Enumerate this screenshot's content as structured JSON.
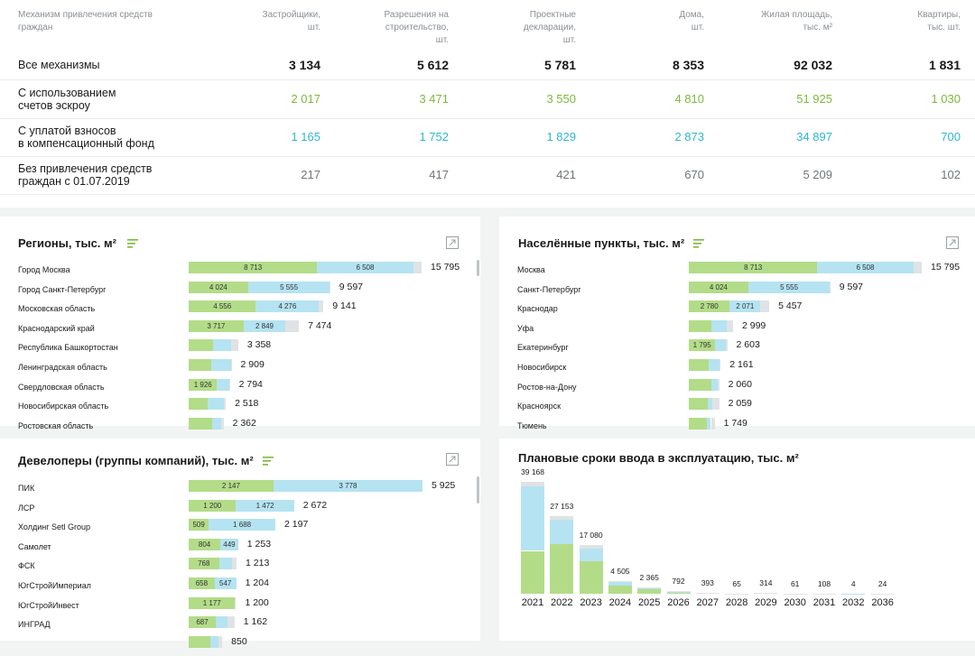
{
  "summary": {
    "headers": [
      "Механизм привлечения средств\nграждан",
      "Застройщики,\nшт.",
      "Разрешения на\nстроительство,\nшт.",
      "Проектные\nдекларации,\nшт.",
      "Дома,\nшт.",
      "Жилая площадь,\nтыс. м²",
      "Квартиры,\nтыс. шт."
    ],
    "rows": [
      {
        "label": "Все механизмы",
        "values": [
          "3 134",
          "5 612",
          "5 781",
          "8 353",
          "92 032",
          "1 831"
        ],
        "color": "#1a1a1a"
      },
      {
        "label": "С использованием\nсчетов эскроу",
        "values": [
          "2 017",
          "3 471",
          "3 550",
          "4 810",
          "51 925",
          "1 030"
        ],
        "color": "#7cb93a"
      },
      {
        "label": "С уплатой взносов\nв компенсационный фонд",
        "values": [
          "1 165",
          "1 752",
          "1 829",
          "2 873",
          "34 897",
          "700"
        ],
        "color": "#2eb6d3"
      },
      {
        "label": "Без привлечения средств\nграждан с 01.07.2019",
        "values": [
          "217",
          "417",
          "421",
          "670",
          "5 209",
          "102"
        ],
        "color": "#6f757a"
      }
    ]
  },
  "regions": {
    "title": "Регионы, тыс. м²",
    "rows": [
      {
        "label": "Город Москва",
        "green": 8713,
        "blue": 6508,
        "grey": 574,
        "gl": "8 713",
        "bl": "6 508",
        "total": "15 795"
      },
      {
        "label": "Город Санкт-Петербург",
        "green": 4024,
        "blue": 5555,
        "grey": 18,
        "gl": "4 024",
        "bl": "5 555",
        "total": "9 597"
      },
      {
        "label": "Московская область",
        "green": 4556,
        "blue": 4276,
        "grey": 309,
        "gl": "4 556",
        "bl": "4 276",
        "total": "9 141"
      },
      {
        "label": "Краснодарский край",
        "green": 3717,
        "blue": 2849,
        "grey": 908,
        "gl": "3 717",
        "bl": "2 849",
        "total": "7 474"
      },
      {
        "label": "Республика Башкортостан",
        "green": 1650,
        "blue": 1200,
        "grey": 508,
        "gl": "",
        "bl": "",
        "total": "3 358"
      },
      {
        "label": "Ленинградская область",
        "green": 1500,
        "blue": 1350,
        "grey": 59,
        "gl": "",
        "bl": "",
        "total": "2 909"
      },
      {
        "label": "Свердловская область",
        "green": 1926,
        "blue": 800,
        "grey": 68,
        "gl": "1 926",
        "bl": "",
        "total": "2 794"
      },
      {
        "label": "Новосибирская область",
        "green": 1300,
        "blue": 1100,
        "grey": 118,
        "gl": "",
        "bl": "",
        "total": "2 518"
      },
      {
        "label": "Ростовская область",
        "green": 1600,
        "blue": 600,
        "grey": 162,
        "gl": "",
        "bl": "",
        "total": "2 362"
      }
    ]
  },
  "cities": {
    "title": "Населённые пункты, тыс. м²",
    "rows": [
      {
        "label": "Москва",
        "green": 8713,
        "blue": 6508,
        "grey": 574,
        "gl": "8 713",
        "bl": "6 508",
        "total": "15 795"
      },
      {
        "label": "Санкт-Петербург",
        "green": 4024,
        "blue": 5555,
        "grey": 18,
        "gl": "4 024",
        "bl": "5 555",
        "total": "9 597"
      },
      {
        "label": "Краснодар",
        "green": 2780,
        "blue": 2071,
        "grey": 606,
        "gl": "2 780",
        "bl": "2 071",
        "total": "5 457"
      },
      {
        "label": "Уфа",
        "green": 1500,
        "blue": 1050,
        "grey": 449,
        "gl": "",
        "bl": "",
        "total": "2 999"
      },
      {
        "label": "Екатеринбург",
        "green": 1795,
        "blue": 700,
        "grey": 108,
        "gl": "1 795",
        "bl": "",
        "total": "2 603"
      },
      {
        "label": "Новосибирск",
        "green": 1350,
        "blue": 750,
        "grey": 61,
        "gl": "",
        "bl": "",
        "total": "2 161"
      },
      {
        "label": "Ростов-на-Дону",
        "green": 1500,
        "blue": 450,
        "grey": 110,
        "gl": "",
        "bl": "",
        "total": "2 060"
      },
      {
        "label": "Красноярск",
        "green": 1300,
        "blue": 300,
        "grey": 459,
        "gl": "",
        "bl": "",
        "total": "2 059"
      },
      {
        "label": "Тюмень",
        "green": 1200,
        "blue": 300,
        "grey": 249,
        "gl": "",
        "bl": "",
        "total": "1 749"
      }
    ]
  },
  "developers": {
    "title": "Девелоперы (группы компаний), тыс. м²",
    "rows": [
      {
        "label": "ПИК",
        "green": 2147,
        "blue": 3778,
        "grey": 0,
        "gl": "2 147",
        "bl": "3 778",
        "total": "5 925"
      },
      {
        "label": "ЛСР",
        "green": 1200,
        "blue": 1472,
        "grey": 0,
        "gl": "1 200",
        "bl": "1 472",
        "total": "2 672"
      },
      {
        "label": "Холдинг Setl Group",
        "green": 509,
        "blue": 1688,
        "grey": 0,
        "gl": "509",
        "bl": "1 688",
        "total": "2 197"
      },
      {
        "label": "Самолет",
        "green": 804,
        "blue": 449,
        "grey": 0,
        "gl": "804",
        "bl": "449",
        "total": "1 253"
      },
      {
        "label": "ФСК",
        "green": 768,
        "blue": 330,
        "grey": 115,
        "gl": "768",
        "bl": "",
        "total": "1 213"
      },
      {
        "label": "ЮгСтройИмпериал",
        "green": 658,
        "blue": 547,
        "grey": 0,
        "gl": "658",
        "bl": "547",
        "total": "1 204"
      },
      {
        "label": "ЮгСтройИнвест",
        "green": 1177,
        "blue": 0,
        "grey": 23,
        "gl": "1 177",
        "bl": "",
        "total": "1 200"
      },
      {
        "label": "ИНГРАД",
        "green": 687,
        "blue": 300,
        "grey": 175,
        "gl": "687",
        "bl": "",
        "total": "1 162"
      },
      {
        "label": "",
        "green": 550,
        "blue": 200,
        "grey": 100,
        "gl": "",
        "bl": "",
        "total": "850"
      }
    ]
  },
  "schedule": {
    "title": "Плановые сроки ввода в эксплуатацию, тыс. м²",
    "bars": [
      {
        "year": "2021",
        "green": 15000,
        "blue": 22500,
        "grey": 1668,
        "label": "39 168"
      },
      {
        "year": "2022",
        "green": 17500,
        "blue": 8500,
        "grey": 1153,
        "label": "27 153"
      },
      {
        "year": "2023",
        "green": 11500,
        "blue": 4200,
        "grey": 1380,
        "label": "17 080"
      },
      {
        "year": "2024",
        "green": 2900,
        "blue": 1300,
        "grey": 305,
        "label": "4 505"
      },
      {
        "year": "2025",
        "green": 1500,
        "blue": 700,
        "grey": 165,
        "label": "2 365"
      },
      {
        "year": "2026",
        "green": 500,
        "blue": 200,
        "grey": 92,
        "label": "792"
      },
      {
        "year": "2027",
        "green": 250,
        "blue": 100,
        "grey": 43,
        "label": "393"
      },
      {
        "year": "2028",
        "green": 40,
        "blue": 15,
        "grey": 10,
        "label": "65"
      },
      {
        "year": "2029",
        "green": 250,
        "blue": 50,
        "grey": 14,
        "label": "314"
      },
      {
        "year": "2030",
        "green": 40,
        "blue": 15,
        "grey": 6,
        "label": "61"
      },
      {
        "year": "2031",
        "green": 70,
        "blue": 30,
        "grey": 8,
        "label": "108"
      },
      {
        "year": "2032",
        "green": 3,
        "blue": 1,
        "grey": 0,
        "label": "4"
      },
      {
        "year": "2036",
        "green": 18,
        "blue": 4,
        "grey": 2,
        "label": "24"
      }
    ]
  },
  "colors": {
    "green": "#b3dc88",
    "blue": "#b5e3f1",
    "grey": "#e0e3e5",
    "accent_green": "#7cb93a",
    "accent_blue": "#2eb6d3"
  },
  "icons": {
    "sort": "sort-icon",
    "expand": "expand-icon"
  }
}
